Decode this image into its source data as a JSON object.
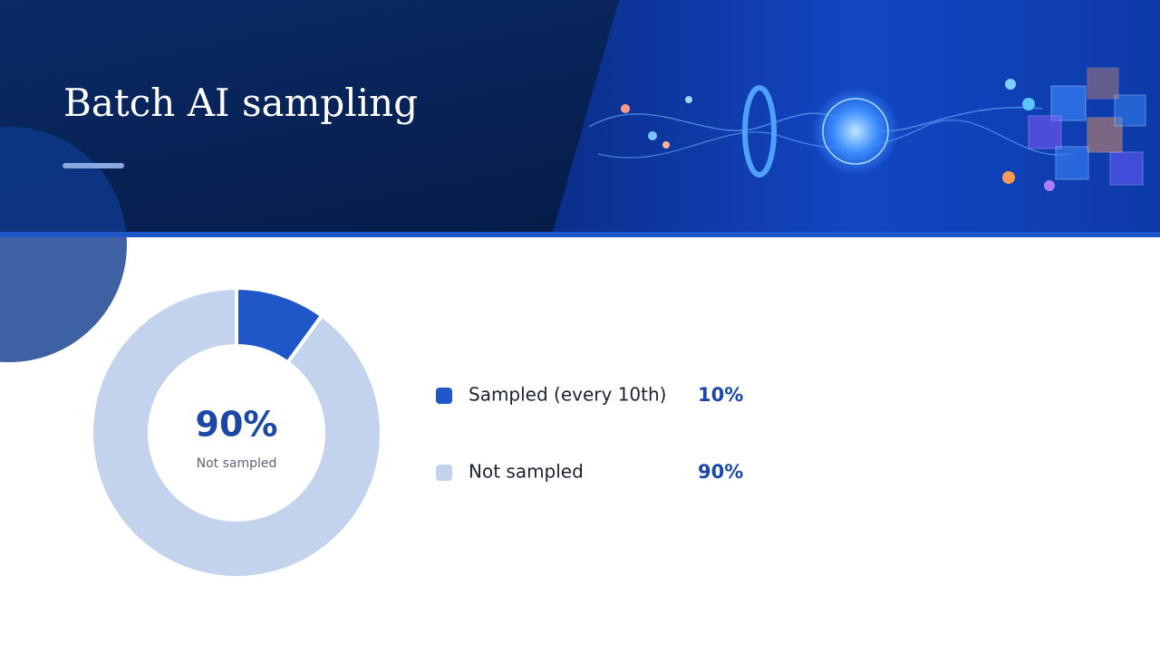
{
  "chart_data": {
    "type": "donut",
    "title": "Batch AI sampling",
    "categories": [
      "Sampled (every 10th)",
      "Not sampled"
    ],
    "values": [
      10,
      90
    ],
    "value_labels": [
      "10%",
      "90%"
    ],
    "colors": [
      "#1f56c8",
      "#c3d3ee"
    ]
  }
}
